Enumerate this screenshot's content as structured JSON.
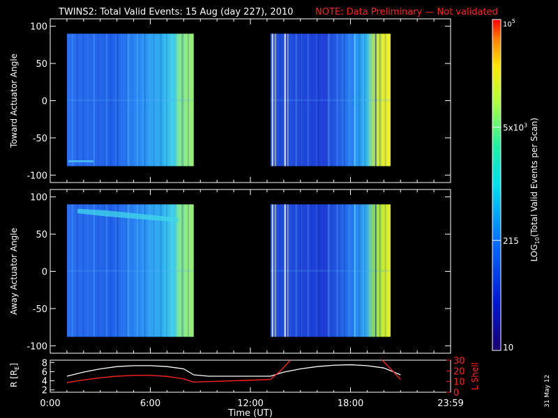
{
  "header": {
    "title": "TWINS2: Total Valid Events: 15 Aug (day 227), 2010",
    "note": "NOTE: Data Preliminary — Not validated"
  },
  "side_date": "31 May 12",
  "colors": {
    "note": "#ff2020",
    "lshell": "#ff2020",
    "r": "#ffffff"
  },
  "chart_data": [
    {
      "type": "heatmap",
      "ylabel": "Toward Actuator Angle",
      "ylim": [
        -110,
        110
      ],
      "yticks": [
        "100",
        "50",
        "0",
        "-50",
        "-100"
      ],
      "ytick_values": [
        100,
        50,
        0,
        -50,
        -100
      ],
      "xlim_hours": [
        0,
        24
      ],
      "data_blocks": [
        {
          "start_hour": 1.0,
          "end_hour": 8.6,
          "angle_range": [
            -88,
            90
          ]
        },
        {
          "start_hour": 13.2,
          "end_hour": 20.4,
          "angle_range": [
            -88,
            90
          ]
        }
      ]
    },
    {
      "type": "heatmap",
      "ylabel": "Away Actuator Angle",
      "ylim": [
        -110,
        110
      ],
      "yticks": [
        "100",
        "50",
        "0",
        "-50",
        "-100"
      ],
      "ytick_values": [
        100,
        50,
        0,
        -50,
        -100
      ],
      "xlim_hours": [
        0,
        24
      ],
      "data_blocks": [
        {
          "start_hour": 1.0,
          "end_hour": 8.6,
          "angle_range": [
            -88,
            90
          ]
        },
        {
          "start_hour": 13.2,
          "end_hour": 20.4,
          "angle_range": [
            -88,
            90
          ]
        }
      ]
    },
    {
      "type": "line",
      "xlabel": "Time (UT)",
      "xticks": [
        "0:00",
        "6:00",
        "12:00",
        "18:00",
        "23:59"
      ],
      "xtick_hours": [
        0,
        6,
        12,
        18,
        24
      ],
      "ylabel_left": "R [R",
      "ylabel_left_sub": "E",
      "ylabel_left_close": "]",
      "ylabel_right": "L Shell",
      "ylim_left": [
        1.5,
        8.5
      ],
      "yticks_left": [
        "8",
        "6",
        "4",
        "2"
      ],
      "ytick_left_values": [
        8,
        6,
        4,
        2
      ],
      "ylim_right": [
        0,
        30
      ],
      "yticks_right": [
        "30",
        "20",
        "10",
        "0"
      ],
      "ytick_right_values": [
        30,
        20,
        10,
        0
      ],
      "series": [
        {
          "axis": "left",
          "x": [
            1.0,
            2.0,
            3.0,
            4.0,
            5.0,
            6.0,
            7.0,
            8.0,
            8.6,
            9.5,
            10.5,
            11.5,
            12.5,
            13.2,
            14.0,
            15.0,
            16.0,
            17.0,
            18.0,
            19.0,
            20.0,
            21.0
          ],
          "y": [
            5.0,
            5.9,
            6.6,
            7.1,
            7.3,
            7.3,
            7.1,
            6.6,
            5.3,
            5.0,
            5.0,
            5.0,
            5.0,
            5.0,
            5.9,
            6.6,
            7.1,
            7.4,
            7.5,
            7.3,
            6.8,
            5.3
          ]
        },
        {
          "axis": "right",
          "x": [
            1.0,
            2.0,
            3.0,
            4.0,
            5.0,
            6.0,
            7.0,
            8.0,
            8.6,
            9.5,
            10.5,
            11.5,
            12.5,
            13.2,
            13.8,
            14.4
          ],
          "y": [
            9.0,
            11.5,
            13.5,
            15.0,
            15.8,
            15.8,
            14.8,
            12.5,
            9.5,
            10.0,
            10.5,
            11.0,
            11.5,
            12.0,
            20.0,
            30.0
          ],
          "x2": [
            19.9,
            20.4,
            21.0
          ],
          "y2": [
            30.0,
            22.0,
            12.0
          ]
        }
      ]
    }
  ],
  "colorbar": {
    "label_main": "LOG",
    "label_sub": "10",
    "label_rest": "(Total Valid Events per Scan)",
    "ticks": [
      "10",
      "215",
      "5x10",
      "10"
    ],
    "tick_exp": [
      "",
      "",
      "3",
      "5"
    ],
    "tick_values_log": [
      1.0,
      2.33,
      3.7,
      5.0
    ],
    "range_log": [
      1.0,
      5.0
    ]
  }
}
